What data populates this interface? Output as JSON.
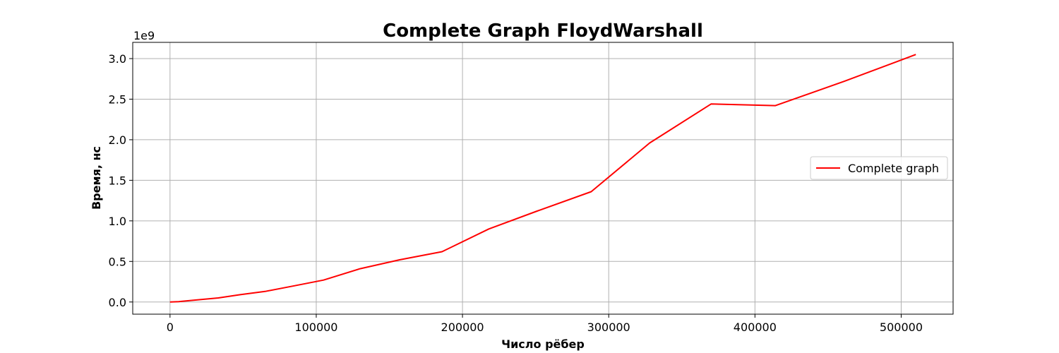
{
  "chart_data": {
    "type": "line",
    "title": "Complete Graph FloydWarshall",
    "xlabel": "Число рёбер",
    "ylabel": "Время, нс",
    "y_offset_label": "1e9",
    "xlim": [
      -25500,
      535500
    ],
    "ylim": [
      -0.15,
      3.2
    ],
    "x_ticks": [
      0,
      100000,
      200000,
      300000,
      400000,
      500000
    ],
    "x_tick_labels": [
      "0",
      "100000",
      "200000",
      "300000",
      "400000",
      "500000"
    ],
    "y_ticks": [
      0.0,
      0.5,
      1.0,
      1.5,
      2.0,
      2.5,
      3.0
    ],
    "y_tick_labels": [
      "0.0",
      "0.5",
      "1.0",
      "1.5",
      "2.0",
      "2.5",
      "3.0"
    ],
    "grid": true,
    "legend_position": "center-right",
    "series": [
      {
        "name": "Complete graph",
        "color": "#ff0000",
        "x": [
          0,
          6000,
          18000,
          33000,
          48000,
          65000,
          85000,
          105000,
          130000,
          157000,
          186000,
          218000,
          251000,
          288000,
          328000,
          370000,
          414000,
          461000,
          510000
        ],
        "y": [
          0.0,
          0.005,
          0.025,
          0.05,
          0.09,
          0.13,
          0.2,
          0.27,
          0.41,
          0.52,
          0.62,
          0.9,
          1.12,
          1.36,
          1.96,
          2.44,
          2.42,
          2.72,
          3.05
        ]
      }
    ]
  }
}
